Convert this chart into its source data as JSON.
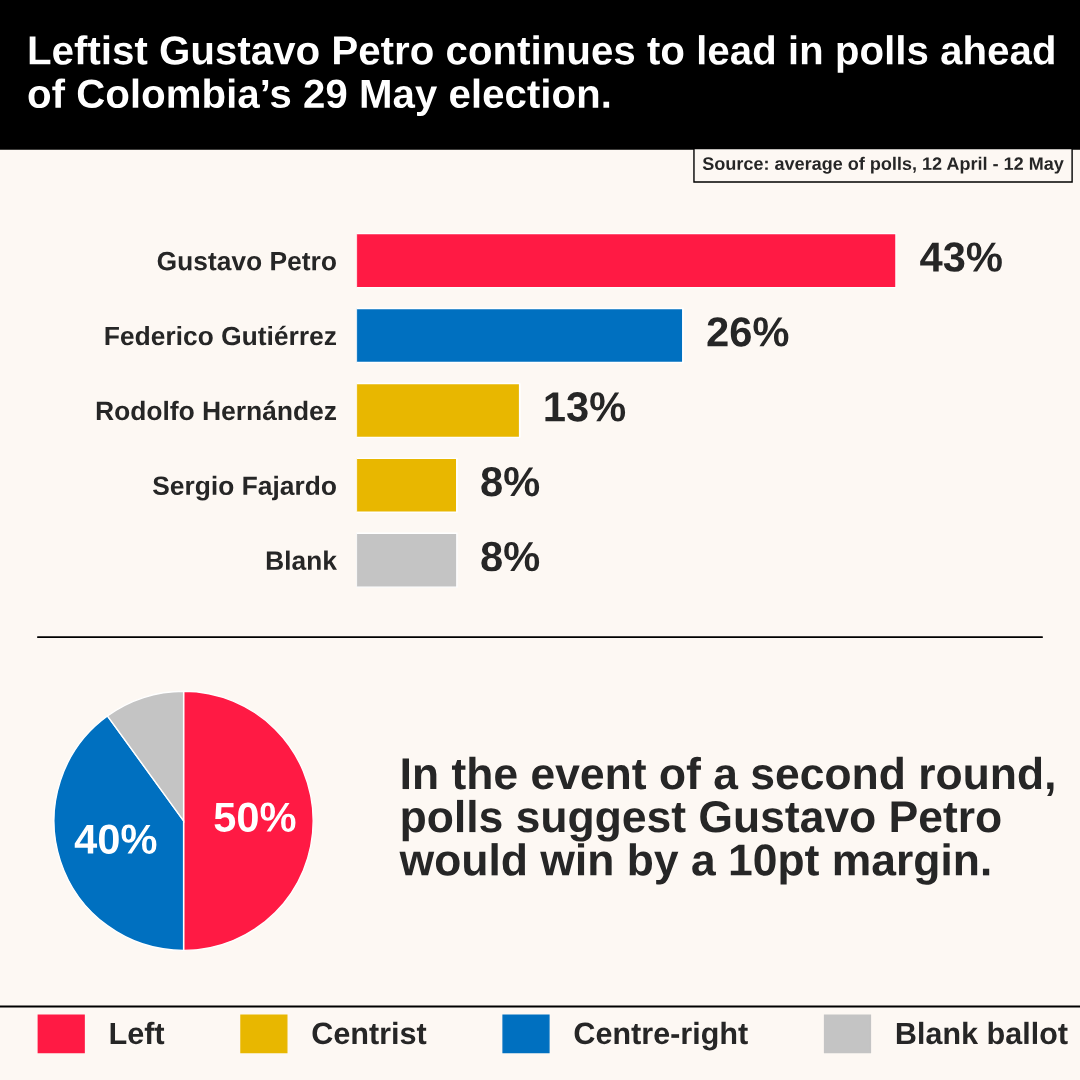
{
  "chart_data": [
    {
      "type": "bar",
      "orientation": "horizontal",
      "stacked": true,
      "title": "Leftist Gustavo Petro continues to lead in polls ahead of Colombia’s 29 May election.",
      "categories": [
        "Gustavo Petro",
        "Federico Gutiérrez",
        "Rodolfo Hernández",
        "Sergio Fajardo",
        "Blank"
      ],
      "series": [
        {
          "name": "Left",
          "color": "#ff1a44",
          "values": [
            43,
            null,
            null,
            null,
            null
          ],
          "value_labels": [
            "43%",
            null,
            null,
            null,
            null
          ]
        },
        {
          "name": "Centrist",
          "color": "#e8b700",
          "values": [
            null,
            null,
            13,
            8,
            null
          ],
          "value_labels": [
            null,
            null,
            "13%",
            "8%",
            null
          ]
        },
        {
          "name": "Centre-right",
          "color": "#0070c0",
          "values": [
            null,
            26,
            null,
            null,
            null
          ],
          "value_labels": [
            null,
            "26%",
            null,
            null,
            null
          ]
        },
        {
          "name": "Blank ballot",
          "color": "#c4c4c4",
          "values": [
            null,
            null,
            null,
            null,
            8
          ],
          "value_labels": [
            null,
            null,
            null,
            null,
            "8%"
          ]
        }
      ],
      "annotations": [
        "Source: average of polls, 12 April - 12 May"
      ],
      "legend": "bottom",
      "grid": false
    },
    {
      "type": "pie",
      "categories": [
        null,
        null,
        null
      ],
      "values": [
        50,
        40,
        10
      ],
      "colors": [
        "#ff1a44",
        "#0070c0",
        "#c4c4c4"
      ],
      "value_labels": [
        "50%",
        "40%",
        null
      ],
      "annotations": [
        "In the event of a second round, polls suggest Gustavo Petro would win by a 10pt margin."
      ]
    }
  ]
}
